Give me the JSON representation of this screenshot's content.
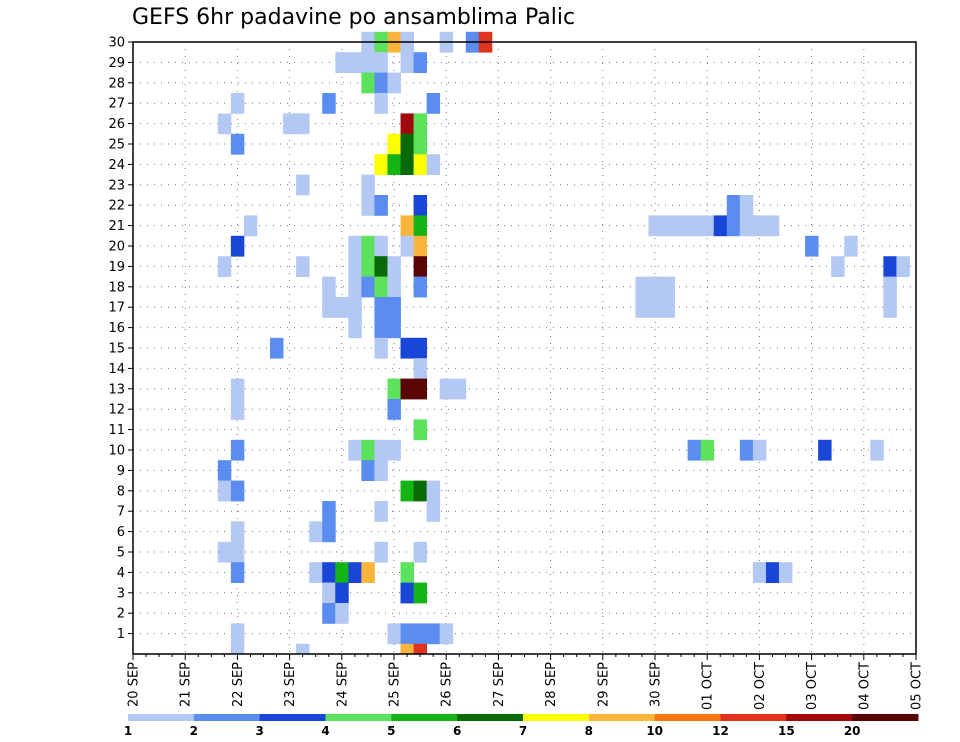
{
  "chart_data": {
    "type": "heatmap",
    "title": "GEFS 6hr padavine po ansamblima Palic",
    "y_ticks": [
      "1",
      "2",
      "3",
      "4",
      "5",
      "6",
      "7",
      "8",
      "9",
      "10",
      "11",
      "12",
      "13",
      "14",
      "15",
      "16",
      "17",
      "18",
      "19",
      "20",
      "21",
      "22",
      "23",
      "24",
      "25",
      "26",
      "27",
      "28",
      "29",
      "30"
    ],
    "x_ticks": [
      "20 SEP",
      "21 SEP",
      "22 SEP",
      "23 SEP",
      "24 SEP",
      "25 SEP",
      "26 SEP",
      "27 SEP",
      "28 SEP",
      "29 SEP",
      "30 SEP",
      "01 OCT",
      "02 OCT",
      "03 OCT",
      "04 OCT",
      "05 OCT"
    ],
    "grid": true,
    "legend": {
      "placement": "bottom",
      "labels": [
        "1",
        "2",
        "3",
        "4",
        "5",
        "6",
        "7",
        "8",
        "10",
        "12",
        "15",
        "20"
      ],
      "colors": [
        "#b4c8f4",
        "#5b8cf0",
        "#1a46d8",
        "#5ce25c",
        "#14b414",
        "#0a6a0a",
        "#ffff00",
        "#fbb43c",
        "#f87814",
        "#e1321e",
        "#a00a0a",
        "#5a0505"
      ]
    },
    "cells": [
      [
        "24 SEP 12Z",
        30,
        1
      ],
      [
        "24 SEP 18Z",
        30,
        4
      ],
      [
        "25 SEP 00Z",
        30,
        8
      ],
      [
        "25 SEP 06Z",
        30,
        1
      ],
      [
        "26 SEP 00Z",
        30,
        1
      ],
      [
        "26 SEP 12Z",
        30,
        2
      ],
      [
        "26 SEP 18Z",
        30,
        12
      ],
      [
        "24 SEP 00Z",
        29,
        1
      ],
      [
        "24 SEP 06Z",
        29,
        1
      ],
      [
        "24 SEP 12Z",
        29,
        1
      ],
      [
        "24 SEP 18Z",
        29,
        1
      ],
      [
        "25 SEP 06Z",
        29,
        1
      ],
      [
        "25 SEP 12Z",
        29,
        2
      ],
      [
        "24 SEP 12Z",
        28,
        4
      ],
      [
        "24 SEP 18Z",
        28,
        2
      ],
      [
        "25 SEP 00Z",
        28,
        1
      ],
      [
        "22 SEP 00Z",
        27,
        1
      ],
      [
        "23 SEP 18Z",
        27,
        2
      ],
      [
        "24 SEP 18Z",
        27,
        1
      ],
      [
        "25 SEP 18Z",
        27,
        2
      ],
      [
        "21 SEP 18Z",
        26,
        1
      ],
      [
        "23 SEP 00Z",
        26,
        1
      ],
      [
        "23 SEP 06Z",
        26,
        1
      ],
      [
        "25 SEP 06Z",
        26,
        15
      ],
      [
        "25 SEP 12Z",
        26,
        4
      ],
      [
        "22 SEP 00Z",
        25,
        2
      ],
      [
        "25 SEP 00Z",
        25,
        7
      ],
      [
        "25 SEP 06Z",
        25,
        6
      ],
      [
        "25 SEP 12Z",
        25,
        4
      ],
      [
        "24 SEP 18Z",
        24,
        7
      ],
      [
        "25 SEP 00Z",
        24,
        5
      ],
      [
        "25 SEP 06Z",
        24,
        6
      ],
      [
        "25 SEP 12Z",
        24,
        7
      ],
      [
        "25 SEP 18Z",
        24,
        1
      ],
      [
        "23 SEP 06Z",
        23,
        1
      ],
      [
        "24 SEP 12Z",
        23,
        1
      ],
      [
        "24 SEP 12Z",
        22,
        1
      ],
      [
        "24 SEP 18Z",
        22,
        2
      ],
      [
        "25 SEP 12Z",
        22,
        3
      ],
      [
        "22 SEP 06Z",
        21,
        1
      ],
      [
        "25 SEP 06Z",
        21,
        8
      ],
      [
        "25 SEP 12Z",
        21,
        5
      ],
      [
        "30 SEP 00Z",
        21,
        1
      ],
      [
        "30 SEP 06Z",
        21,
        1
      ],
      [
        "30 SEP 12Z",
        21,
        1
      ],
      [
        "30 SEP 18Z",
        21,
        1
      ],
      [
        "01 OCT 00Z",
        21,
        1
      ],
      [
        "01 OCT 06Z",
        21,
        3
      ],
      [
        "01 OCT 12Z",
        21,
        2
      ],
      [
        "01 OCT 18Z",
        21,
        1
      ],
      [
        "02 OCT 00Z",
        21,
        1
      ],
      [
        "02 OCT 06Z",
        21,
        1
      ],
      [
        "01 OCT 12Z",
        22,
        2
      ],
      [
        "01 OCT 18Z",
        22,
        1
      ],
      [
        "22 SEP 00Z",
        20,
        3
      ],
      [
        "24 SEP 06Z",
        20,
        1
      ],
      [
        "24 SEP 12Z",
        20,
        4
      ],
      [
        "24 SEP 18Z",
        20,
        1
      ],
      [
        "25 SEP 06Z",
        20,
        1
      ],
      [
        "25 SEP 12Z",
        20,
        8
      ],
      [
        "03 OCT 00Z",
        20,
        2
      ],
      [
        "03 OCT 18Z",
        20,
        1
      ],
      [
        "21 SEP 18Z",
        19,
        1
      ],
      [
        "23 SEP 06Z",
        19,
        1
      ],
      [
        "24 SEP 06Z",
        19,
        1
      ],
      [
        "24 SEP 12Z",
        19,
        4
      ],
      [
        "24 SEP 18Z",
        19,
        6
      ],
      [
        "25 SEP 00Z",
        19,
        1
      ],
      [
        "25 SEP 12Z",
        19,
        20
      ],
      [
        "03 OCT 12Z",
        19,
        1
      ],
      [
        "04 OCT 12Z",
        19,
        3
      ],
      [
        "04 OCT 18Z",
        19,
        1
      ],
      [
        "23 SEP 18Z",
        18,
        1
      ],
      [
        "24 SEP 06Z",
        18,
        1
      ],
      [
        "24 SEP 12Z",
        18,
        2
      ],
      [
        "24 SEP 18Z",
        18,
        4
      ],
      [
        "25 SEP 00Z",
        18,
        1
      ],
      [
        "25 SEP 12Z",
        18,
        2
      ],
      [
        "29 SEP 18Z",
        18,
        1
      ],
      [
        "30 SEP 00Z",
        18,
        1
      ],
      [
        "30 SEP 06Z",
        18,
        1
      ],
      [
        "04 OCT 12Z",
        18,
        1
      ],
      [
        "23 SEP 18Z",
        17,
        1
      ],
      [
        "24 SEP 00Z",
        17,
        1
      ],
      [
        "24 SEP 06Z",
        17,
        1
      ],
      [
        "24 SEP 18Z",
        17,
        2
      ],
      [
        "25 SEP 00Z",
        17,
        2
      ],
      [
        "29 SEP 18Z",
        17,
        1
      ],
      [
        "30 SEP 00Z",
        17,
        1
      ],
      [
        "30 SEP 06Z",
        17,
        1
      ],
      [
        "04 OCT 12Z",
        17,
        1
      ],
      [
        "24 SEP 06Z",
        16,
        1
      ],
      [
        "24 SEP 18Z",
        16,
        2
      ],
      [
        "25 SEP 00Z",
        16,
        2
      ],
      [
        "22 SEP 18Z",
        15,
        2
      ],
      [
        "24 SEP 18Z",
        15,
        1
      ],
      [
        "25 SEP 06Z",
        15,
        3
      ],
      [
        "25 SEP 12Z",
        15,
        3
      ],
      [
        "25 SEP 12Z",
        14,
        1
      ],
      [
        "22 SEP 00Z",
        13,
        1
      ],
      [
        "25 SEP 00Z",
        13,
        4
      ],
      [
        "25 SEP 06Z",
        13,
        20
      ],
      [
        "25 SEP 12Z",
        13,
        20
      ],
      [
        "26 SEP 00Z",
        13,
        1
      ],
      [
        "26 SEP 06Z",
        13,
        1
      ],
      [
        "22 SEP 00Z",
        12,
        1
      ],
      [
        "25 SEP 00Z",
        12,
        2
      ],
      [
        "25 SEP 12Z",
        11,
        4
      ],
      [
        "22 SEP 00Z",
        10,
        2
      ],
      [
        "24 SEP 06Z",
        10,
        1
      ],
      [
        "24 SEP 12Z",
        10,
        4
      ],
      [
        "24 SEP 18Z",
        10,
        1
      ],
      [
        "25 SEP 00Z",
        10,
        1
      ],
      [
        "30 SEP 18Z",
        10,
        2
      ],
      [
        "01 OCT 00Z",
        10,
        4
      ],
      [
        "01 OCT 18Z",
        10,
        2
      ],
      [
        "02 OCT 00Z",
        10,
        1
      ],
      [
        "03 OCT 06Z",
        10,
        3
      ],
      [
        "04 OCT 06Z",
        10,
        1
      ],
      [
        "21 SEP 18Z",
        9,
        2
      ],
      [
        "24 SEP 12Z",
        9,
        2
      ],
      [
        "24 SEP 18Z",
        9,
        1
      ],
      [
        "21 SEP 18Z",
        8,
        1
      ],
      [
        "22 SEP 00Z",
        8,
        2
      ],
      [
        "25 SEP 06Z",
        8,
        5
      ],
      [
        "25 SEP 12Z",
        8,
        6
      ],
      [
        "25 SEP 18Z",
        8,
        1
      ],
      [
        "23 SEP 18Z",
        7,
        2
      ],
      [
        "24 SEP 18Z",
        7,
        1
      ],
      [
        "25 SEP 18Z",
        7,
        1
      ],
      [
        "22 SEP 00Z",
        6,
        1
      ],
      [
        "23 SEP 12Z",
        6,
        1
      ],
      [
        "23 SEP 18Z",
        6,
        2
      ],
      [
        "21 SEP 18Z",
        5,
        1
      ],
      [
        "22 SEP 00Z",
        5,
        1
      ],
      [
        "24 SEP 18Z",
        5,
        1
      ],
      [
        "25 SEP 12Z",
        5,
        1
      ],
      [
        "22 SEP 00Z",
        4,
        2
      ],
      [
        "23 SEP 12Z",
        4,
        1
      ],
      [
        "23 SEP 18Z",
        4,
        3
      ],
      [
        "24 SEP 00Z",
        4,
        5
      ],
      [
        "24 SEP 06Z",
        4,
        3
      ],
      [
        "24 SEP 12Z",
        4,
        8
      ],
      [
        "25 SEP 06Z",
        4,
        4
      ],
      [
        "02 OCT 00Z",
        4,
        1
      ],
      [
        "02 OCT 06Z",
        4,
        3
      ],
      [
        "02 OCT 12Z",
        4,
        1
      ],
      [
        "23 SEP 18Z",
        3,
        1
      ],
      [
        "24 SEP 00Z",
        3,
        3
      ],
      [
        "25 SEP 06Z",
        3,
        3
      ],
      [
        "25 SEP 12Z",
        3,
        5
      ],
      [
        "23 SEP 18Z",
        2,
        2
      ],
      [
        "24 SEP 00Z",
        2,
        1
      ],
      [
        "22 SEP 00Z",
        1,
        1
      ],
      [
        "25 SEP 00Z",
        1,
        1
      ],
      [
        "25 SEP 06Z",
        1,
        2
      ],
      [
        "25 SEP 12Z",
        1,
        2
      ],
      [
        "25 SEP 18Z",
        1,
        2
      ],
      [
        "26 SEP 00Z",
        1,
        1
      ],
      [
        "22 SEP 00Z",
        0,
        1
      ],
      [
        "23 SEP 06Z",
        0,
        1
      ],
      [
        "25 SEP 06Z",
        0,
        8
      ],
      [
        "25 SEP 12Z",
        0,
        12
      ]
    ]
  }
}
